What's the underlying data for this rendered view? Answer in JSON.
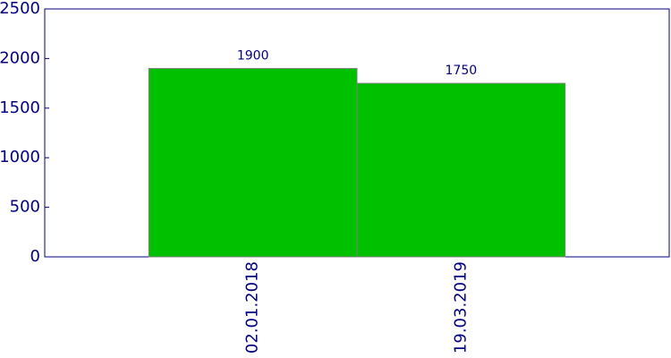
{
  "chart_data": {
    "type": "bar",
    "categories": [
      "02.01.2018",
      "19.03.2019"
    ],
    "values": [
      1900,
      1750
    ],
    "color": "#00c000",
    "ylim": [
      0,
      2500
    ],
    "yticks": [
      0,
      500,
      1000,
      1500,
      2000,
      2500
    ],
    "data_labels": true
  }
}
